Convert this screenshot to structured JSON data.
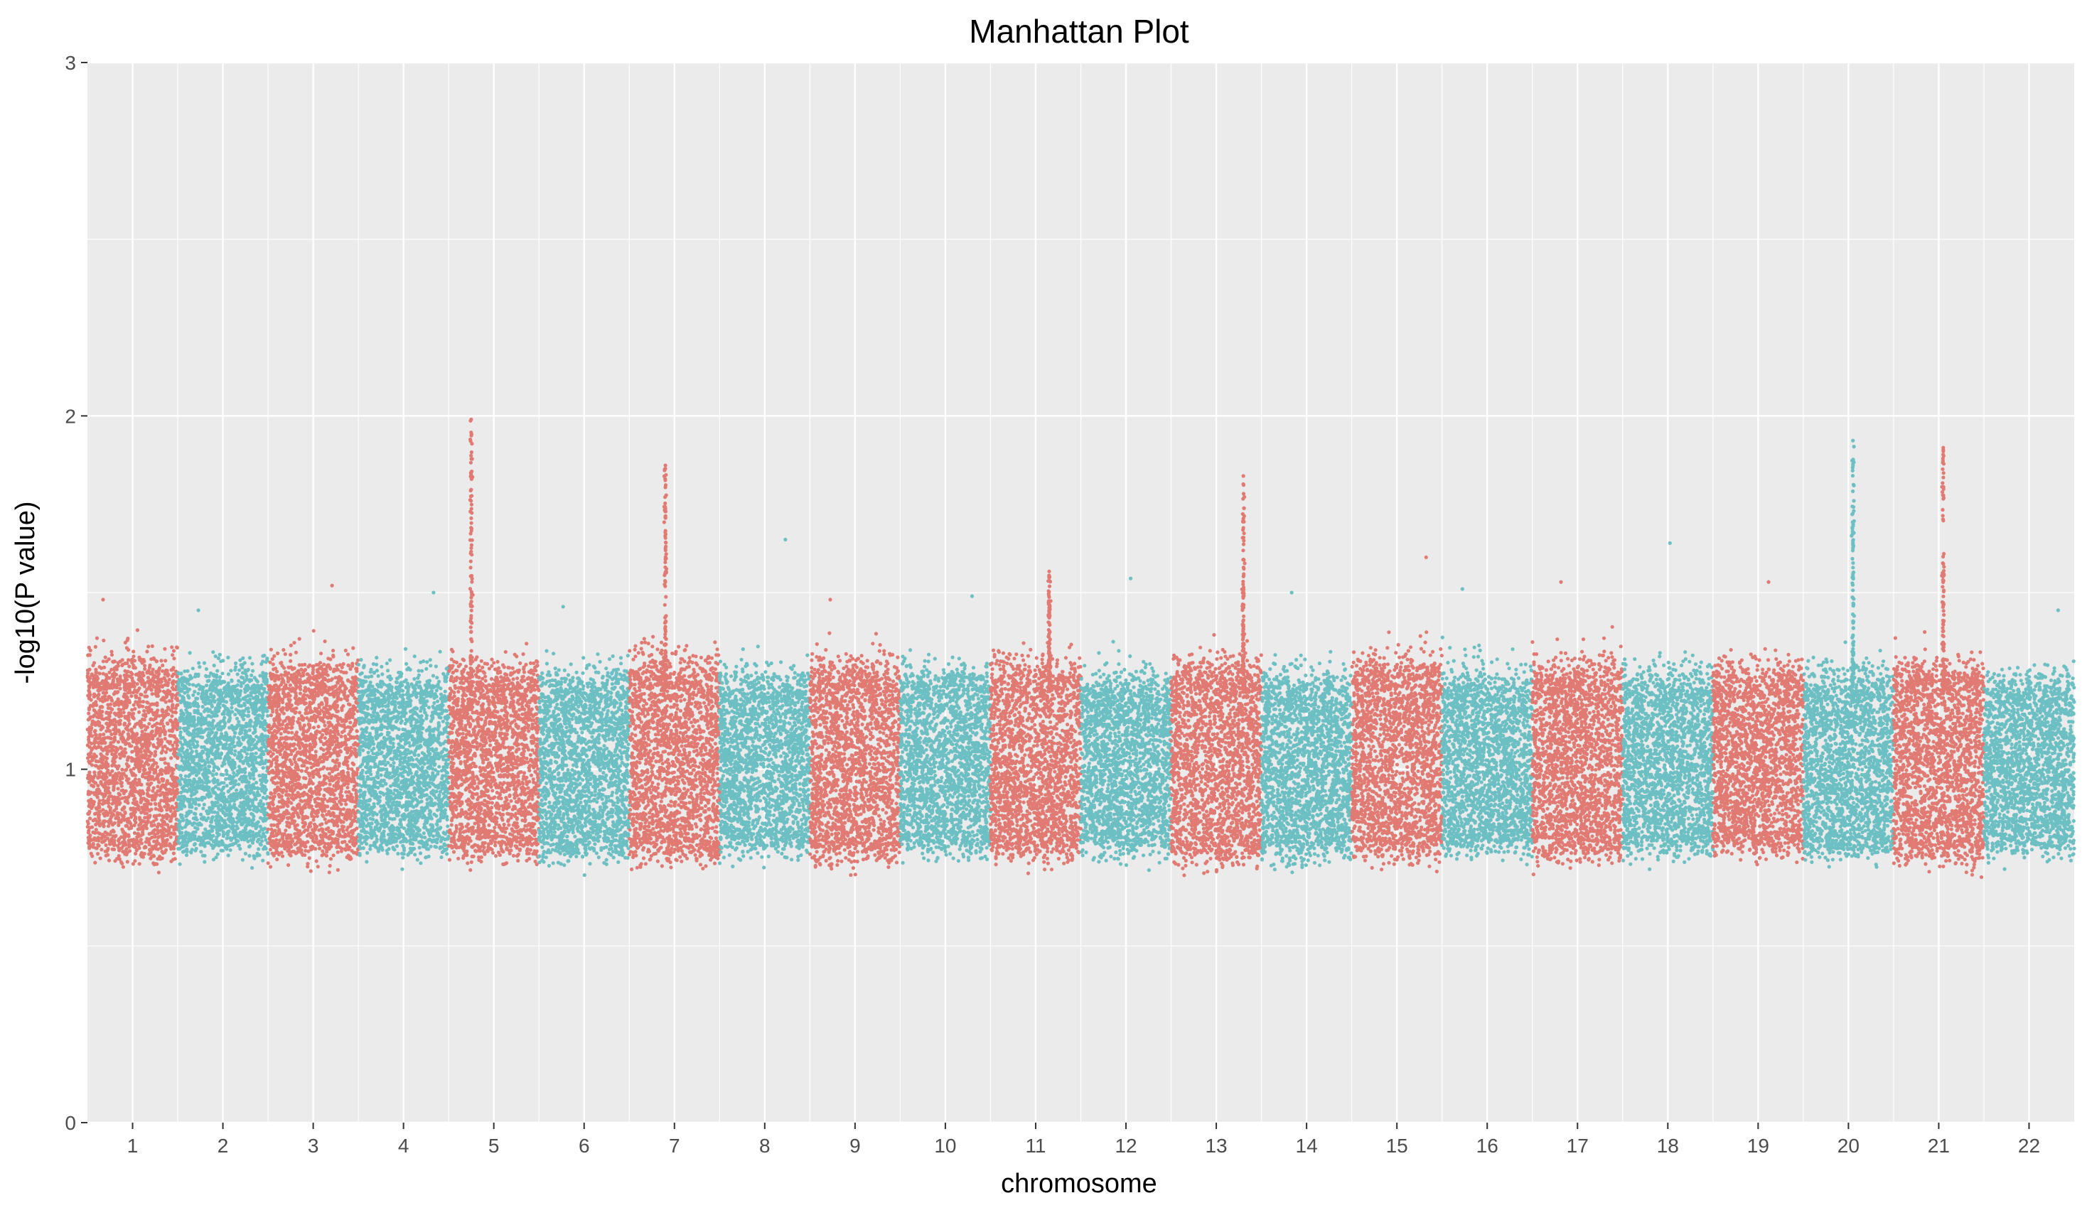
{
  "chart_data": {
    "type": "scatter",
    "title": "Manhattan Plot",
    "xlabel": "chromosome",
    "ylabel": "-log10(P value)",
    "ylim": [
      0,
      3
    ],
    "y_ticks": [
      "0",
      "1",
      "2",
      "3"
    ],
    "categories": [
      "1",
      "2",
      "3",
      "4",
      "5",
      "6",
      "7",
      "8",
      "9",
      "10",
      "11",
      "12",
      "13",
      "14",
      "15",
      "16",
      "17",
      "18",
      "19",
      "20",
      "21",
      "22"
    ],
    "grid": true,
    "legend": "none",
    "colors": {
      "odd_chromosome": "#E07A72",
      "even_chromosome": "#6CBFC2",
      "panel_background": "#EBEBEB",
      "gridline": "#FFFFFF"
    },
    "series": [
      {
        "chromosome": "1",
        "color": "#E07A72",
        "body_range": [
          0.81,
          1.23
        ],
        "max": 1.48
      },
      {
        "chromosome": "2",
        "color": "#6CBFC2",
        "body_range": [
          0.82,
          1.2
        ],
        "max": 1.45
      },
      {
        "chromosome": "3",
        "color": "#E07A72",
        "body_range": [
          0.81,
          1.22
        ],
        "max": 1.52
      },
      {
        "chromosome": "4",
        "color": "#6CBFC2",
        "body_range": [
          0.82,
          1.19
        ],
        "max": 1.5
      },
      {
        "chromosome": "5",
        "color": "#E07A72",
        "body_range": [
          0.81,
          1.21
        ],
        "max": 1.99,
        "peak": {
          "position": 0.25,
          "value": 1.99
        }
      },
      {
        "chromosome": "6",
        "color": "#6CBFC2",
        "body_range": [
          0.81,
          1.19
        ],
        "max": 1.46
      },
      {
        "chromosome": "7",
        "color": "#E07A72",
        "body_range": [
          0.8,
          1.23
        ],
        "max": 1.86,
        "peak": {
          "position": 0.4,
          "value": 1.86
        }
      },
      {
        "chromosome": "8",
        "color": "#6CBFC2",
        "body_range": [
          0.82,
          1.19
        ],
        "max": 1.65
      },
      {
        "chromosome": "9",
        "color": "#E07A72",
        "body_range": [
          0.8,
          1.22
        ],
        "max": 1.48
      },
      {
        "chromosome": "10",
        "color": "#6CBFC2",
        "body_range": [
          0.82,
          1.2
        ],
        "max": 1.49
      },
      {
        "chromosome": "11",
        "color": "#E07A72",
        "body_range": [
          0.81,
          1.22
        ],
        "max": 1.56,
        "peak": {
          "position": 0.65,
          "value": 1.56
        }
      },
      {
        "chromosome": "12",
        "color": "#6CBFC2",
        "body_range": [
          0.82,
          1.18
        ],
        "max": 1.54
      },
      {
        "chromosome": "13",
        "color": "#E07A72",
        "body_range": [
          0.8,
          1.22
        ],
        "max": 1.83,
        "peak": {
          "position": 0.8,
          "value": 1.83
        }
      },
      {
        "chromosome": "14",
        "color": "#6CBFC2",
        "body_range": [
          0.81,
          1.18
        ],
        "max": 1.5
      },
      {
        "chromosome": "15",
        "color": "#E07A72",
        "body_range": [
          0.81,
          1.23
        ],
        "max": 1.6
      },
      {
        "chromosome": "16",
        "color": "#6CBFC2",
        "body_range": [
          0.82,
          1.19
        ],
        "max": 1.51
      },
      {
        "chromosome": "17",
        "color": "#E07A72",
        "body_range": [
          0.81,
          1.22
        ],
        "max": 1.53
      },
      {
        "chromosome": "18",
        "color": "#6CBFC2",
        "body_range": [
          0.82,
          1.19
        ],
        "max": 1.64
      },
      {
        "chromosome": "19",
        "color": "#E07A72",
        "body_range": [
          0.82,
          1.21
        ],
        "max": 1.53
      },
      {
        "chromosome": "20",
        "color": "#6CBFC2",
        "body_range": [
          0.81,
          1.19
        ],
        "max": 1.93,
        "peak": {
          "position": 0.55,
          "value": 1.93
        }
      },
      {
        "chromosome": "21",
        "color": "#E07A72",
        "body_range": [
          0.8,
          1.22
        ],
        "max": 1.91,
        "peak": {
          "position": 0.55,
          "value": 1.91
        }
      },
      {
        "chromosome": "22",
        "color": "#6CBFC2",
        "body_range": [
          0.82,
          1.18
        ],
        "max": 1.45
      }
    ]
  }
}
